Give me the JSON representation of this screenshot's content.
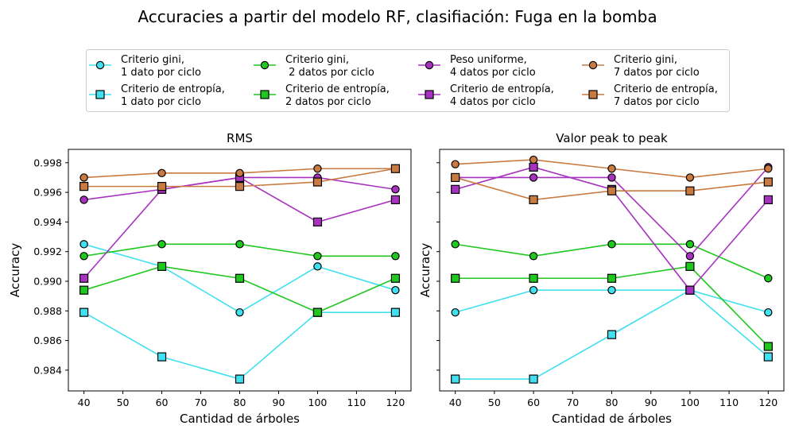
{
  "suptitle": "Accuracies a partir del modelo RF, clasifiación: Fuga en la bomba",
  "chart_data": [
    {
      "type": "line",
      "title": "RMS",
      "xlabel": "Cantidad de árboles",
      "ylabel": "Accuracy",
      "x": [
        40,
        60,
        80,
        100,
        120
      ],
      "xticks": [
        40,
        50,
        60,
        70,
        80,
        90,
        100,
        110,
        120
      ],
      "xlim": [
        36,
        124
      ],
      "yticks": [
        "0.984",
        "0.986",
        "0.988",
        "0.990",
        "0.992",
        "0.994",
        "0.996",
        "0.998"
      ],
      "ylim": [
        0.9826,
        0.9989
      ],
      "series": [
        {
          "name": "Criterio gini,\n1 dato por ciclo",
          "color": "#40e0f0",
          "marker": "circle",
          "values": [
            0.9925,
            0.991,
            0.9879,
            0.991,
            0.9894
          ]
        },
        {
          "name": "Criterio de entropía,\n1 dato por ciclo",
          "color": "#40e0f0",
          "marker": "square",
          "values": [
            0.9879,
            0.9849,
            0.9834,
            0.9879,
            0.9879
          ]
        },
        {
          "name": "Criterio gini,\n 2 datos por ciclo",
          "color": "#1ec81e",
          "marker": "circle",
          "values": [
            0.9917,
            0.9925,
            0.9925,
            0.9917,
            0.9917
          ]
        },
        {
          "name": "Criterio de entropía,\n2 datos por ciclo",
          "color": "#1ec81e",
          "marker": "square",
          "values": [
            0.9894,
            0.991,
            0.9902,
            0.9879,
            0.9902
          ]
        },
        {
          "name": "Peso uniforme,\n4 datos por ciclo",
          "color": "#a832c0",
          "marker": "circle",
          "values": [
            0.9955,
            0.9962,
            0.997,
            0.997,
            0.9962
          ]
        },
        {
          "name": "Criterio de entropía,\n4 datos por ciclo",
          "color": "#a832c0",
          "marker": "square",
          "values": [
            0.9902,
            0.9962,
            0.997,
            0.994,
            0.9955
          ]
        },
        {
          "name": "Criterio gini,\n7 datos por ciclo",
          "color": "#c87a40",
          "marker": "circle",
          "values": [
            0.997,
            0.9973,
            0.9973,
            0.9976,
            0.9976
          ]
        },
        {
          "name": "Criterio de entropía,\n7 datos por ciclo",
          "color": "#c87a40",
          "marker": "square",
          "values": [
            0.9964,
            0.9964,
            0.9964,
            0.9967,
            0.9976
          ]
        }
      ]
    },
    {
      "type": "line",
      "title": "Valor peak to peak",
      "xlabel": "Cantidad de árboles",
      "ylabel": "Accuracy",
      "x": [
        40,
        60,
        80,
        100,
        120
      ],
      "xticks": [
        40,
        50,
        60,
        70,
        80,
        90,
        100,
        110,
        120
      ],
      "xlim": [
        36,
        124
      ],
      "ylim": [
        0.9826,
        0.9989
      ],
      "series": [
        {
          "name": "Criterio gini,\n1 dato por ciclo",
          "color": "#40e0f0",
          "marker": "circle",
          "values": [
            0.9879,
            0.9894,
            0.9894,
            0.9894,
            0.9879
          ]
        },
        {
          "name": "Criterio de entropía,\n1 dato por ciclo",
          "color": "#40e0f0",
          "marker": "square",
          "values": [
            0.9834,
            0.9834,
            0.9864,
            0.9894,
            0.9849
          ]
        },
        {
          "name": "Criterio gini,\n 2 datos por ciclo",
          "color": "#1ec81e",
          "marker": "circle",
          "values": [
            0.9925,
            0.9917,
            0.9925,
            0.9925,
            0.9902
          ]
        },
        {
          "name": "Criterio de entropía,\n2 datos por ciclo",
          "color": "#1ec81e",
          "marker": "square",
          "values": [
            0.9902,
            0.9902,
            0.9902,
            0.991,
            0.9856
          ]
        },
        {
          "name": "Peso uniforme,\n4 datos por ciclo",
          "color": "#a832c0",
          "marker": "circle",
          "values": [
            0.997,
            0.997,
            0.997,
            0.9917,
            0.9977
          ]
        },
        {
          "name": "Criterio de entropía,\n4 datos por ciclo",
          "color": "#a832c0",
          "marker": "square",
          "values": [
            0.9962,
            0.9977,
            0.9962,
            0.9894,
            0.9955
          ]
        },
        {
          "name": "Criterio gini,\n7 datos por ciclo",
          "color": "#c87a40",
          "marker": "circle",
          "values": [
            0.9979,
            0.9982,
            0.9976,
            0.997,
            0.9976
          ]
        },
        {
          "name": "Criterio de entropía,\n7 datos por ciclo",
          "color": "#c87a40",
          "marker": "square",
          "values": [
            0.997,
            0.9955,
            0.9961,
            0.9961,
            0.9967
          ]
        }
      ]
    }
  ]
}
